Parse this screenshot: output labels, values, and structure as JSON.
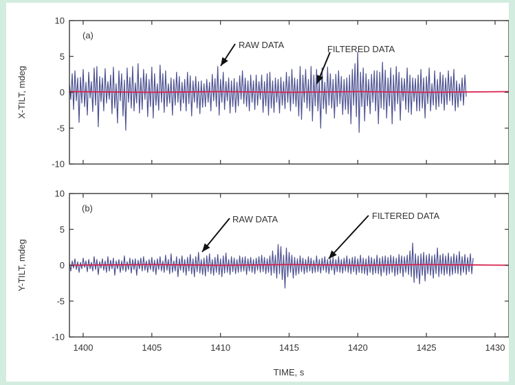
{
  "colors": {
    "page_background": "#d3ece0",
    "raw_data": "#4a4f8f",
    "filtered_data": "#d81e4a",
    "axis": "#333333"
  },
  "chart_data": [
    {
      "type": "line",
      "panel_label": "(a)",
      "xlabel": "",
      "ylabel": "X-TILT, mdeg",
      "xlim": [
        1399,
        1431
      ],
      "ylim": [
        -10,
        10
      ],
      "x_ticks": [
        1400,
        1405,
        1410,
        1415,
        1420,
        1425,
        1430
      ],
      "x_tick_labels": [
        "",
        "",
        "",
        "",
        "",
        "",
        ""
      ],
      "y_ticks": [
        10,
        5,
        0,
        -5,
        -10
      ],
      "y_tick_labels": [
        "10",
        "5",
        "0",
        "-5",
        "-10"
      ],
      "grid": false,
      "annotations": [
        {
          "text": "RAW DATA",
          "x": 1409.7,
          "y": 3.9
        },
        {
          "text": "FILTERED DATA",
          "x": 1416.4,
          "y": 0.6
        }
      ],
      "series": [
        {
          "name": "RAW DATA",
          "x_start": 1399,
          "x_step": 0.1,
          "values": [
            1.2,
            -1.0,
            2.6,
            -2.4,
            3.0,
            -1.2,
            2.0,
            -4.2,
            2.1,
            -1.5,
            3.2,
            -2.0,
            1.4,
            -3.2,
            2.8,
            -0.8,
            1.5,
            -2.7,
            3.4,
            -1.8,
            3.6,
            -4.8,
            2.2,
            -1.3,
            2.0,
            -2.6,
            3.3,
            -1.5,
            1.5,
            -1.0,
            2.4,
            -3.0,
            3.5,
            -2.2,
            1.2,
            -4.3,
            3.0,
            -1.2,
            2.6,
            -3.3,
            1.7,
            -5.3,
            3.4,
            -1.4,
            2.1,
            -2.2,
            3.6,
            -2.6,
            1.3,
            -1.5,
            4.0,
            -2.9,
            2.0,
            -2.4,
            3.2,
            -1.0,
            2.6,
            -3.4,
            1.8,
            -2.0,
            3.5,
            -3.6,
            2.6,
            -1.8,
            1.2,
            -2.5,
            3.8,
            -1.4,
            2.6,
            -2.8,
            3.0,
            -2.0,
            1.2,
            -1.5,
            2.0,
            -3.2,
            1.8,
            -1.8,
            2.8,
            -1.4,
            2.2,
            -2.6,
            1.4,
            -1.5,
            1.8,
            -2.6,
            2.8,
            -1.6,
            2.3,
            -3.3,
            1.6,
            -1.4,
            2.2,
            -2.2,
            1.5,
            -3.0,
            1.6,
            -2.1,
            1.2,
            -2.0,
            1.8,
            -1.4,
            1.4,
            -2.6,
            2.5,
            -1.2,
            1.9,
            -2.0,
            3.6,
            -3.2,
            1.8,
            -1.4,
            2.8,
            -2.4,
            1.5,
            -1.2,
            2.0,
            -2.9,
            1.6,
            -2.0,
            1.9,
            -2.8,
            1.4,
            -1.9,
            2.3,
            -1.0,
            3.0,
            -1.6,
            2.0,
            -2.0,
            1.6,
            -2.6,
            2.4,
            -1.4,
            1.6,
            -2.4,
            2.4,
            -1.8,
            1.5,
            -1.0,
            2.4,
            -2.8,
            1.5,
            -1.9,
            2.6,
            -3.2,
            2.8,
            -2.2,
            1.6,
            -2.8,
            2.0,
            -1.4,
            1.8,
            -2.9,
            2.1,
            -1.8,
            1.5,
            -2.3,
            2.8,
            -1.4,
            2.2,
            -2.6,
            3.2,
            -1.6,
            2.0,
            -2.0,
            1.8,
            -3.3,
            3.6,
            -3.8,
            2.4,
            -1.4,
            3.2,
            -2.2,
            1.8,
            -2.6,
            3.6,
            -4.0,
            2.4,
            -1.9,
            3.2,
            -2.6,
            1.8,
            -5.0,
            3.4,
            -2.3,
            1.4,
            -3.0,
            3.5,
            -1.8,
            2.6,
            -2.2,
            1.8,
            -3.6,
            2.5,
            -2.0,
            3.0,
            -1.6,
            2.2,
            -3.1,
            1.8,
            -2.4,
            2.0,
            -3.0,
            2.4,
            -4.4,
            3.2,
            -1.8,
            4.0,
            -3.4,
            5.6,
            -5.6,
            2.8,
            -2.0,
            3.4,
            -4.0,
            2.6,
            -1.9,
            1.8,
            -3.0,
            2.5,
            -1.4,
            3.0,
            -2.6,
            3.0,
            -4.4,
            2.8,
            -2.2,
            4.2,
            -2.4,
            3.1,
            -3.6,
            2.0,
            -1.9,
            3.4,
            -4.4,
            2.4,
            -2.6,
            3.6,
            -1.6,
            2.8,
            -3.9,
            2.0,
            -1.2,
            1.9,
            -2.4,
            3.4,
            -2.8,
            2.4,
            -3.1,
            2.0,
            -1.3,
            1.9,
            -2.6,
            2.4,
            -2.6,
            3.2,
            -2.2,
            2.0,
            -3.6,
            2.2,
            -1.6,
            3.4,
            -2.6,
            1.2,
            -1.8,
            3.0,
            -2.4,
            1.8,
            -2.0,
            2.8,
            -1.6,
            2.4,
            -2.5,
            2.0,
            -1.7,
            3.0,
            -1.2,
            2.2,
            -1.8,
            3.2,
            -2.6,
            1.6,
            -2.1,
            1.2,
            -1.2,
            2.0,
            -1.8,
            2.4,
            -0.6
          ]
        },
        {
          "name": "FILTERED DATA",
          "x": [
            1399,
            1405,
            1410,
            1415,
            1420,
            1425,
            1431
          ],
          "y": [
            0.1,
            0.0,
            0.1,
            0.0,
            0.1,
            0.0,
            0.1
          ]
        }
      ]
    },
    {
      "type": "line",
      "panel_label": "(b)",
      "xlabel": "TIME, s",
      "ylabel": "Y-TILT, mdeg",
      "xlim": [
        1399,
        1431
      ],
      "ylim": [
        -10,
        10
      ],
      "x_ticks": [
        1400,
        1405,
        1410,
        1415,
        1420,
        1425,
        1430
      ],
      "x_tick_labels": [
        "1400",
        "1405",
        "1410",
        "1415",
        "1420",
        "1425",
        "1430"
      ],
      "y_ticks": [
        10,
        5,
        0,
        -5,
        -10
      ],
      "y_tick_labels": [
        "10",
        "5",
        "0",
        "-5",
        "-10"
      ],
      "grid": false,
      "annotations": [
        {
          "text": "RAW DATA",
          "x": 1408.8,
          "y": 1.3
        },
        {
          "text": "FILTERED DATA",
          "x": 1417.2,
          "y": 0.5
        }
      ],
      "series": [
        {
          "name": "RAW DATA",
          "x_start": 1399,
          "x_step": 0.1,
          "values": [
            0.4,
            -0.8,
            0.6,
            -0.4,
            0.9,
            -0.6,
            0.5,
            -1.0,
            0.4,
            -0.5,
            1.0,
            -0.3,
            0.6,
            -0.9,
            0.8,
            -0.5,
            0.4,
            -0.8,
            1.2,
            -0.6,
            0.8,
            -1.3,
            0.5,
            -0.4,
            0.9,
            -0.7,
            0.6,
            -1.0,
            1.2,
            -0.8,
            0.7,
            -0.5,
            1.0,
            -1.4,
            0.6,
            -0.5,
            0.8,
            -1.0,
            0.6,
            -0.7,
            1.3,
            -0.9,
            0.5,
            -0.6,
            1.0,
            -1.1,
            0.8,
            -0.6,
            0.9,
            -1.4,
            0.7,
            -0.5,
            1.0,
            -0.8,
            1.2,
            -0.7,
            0.6,
            -1.0,
            0.8,
            -0.6,
            1.1,
            -0.9,
            0.7,
            -1.3,
            0.9,
            -0.6,
            1.2,
            -0.8,
            0.6,
            -1.0,
            1.4,
            -0.7,
            0.8,
            -1.2,
            1.6,
            -1.0,
            0.6,
            -0.8,
            1.2,
            -1.6,
            0.9,
            -0.7,
            1.3,
            -1.0,
            0.8,
            -1.4,
            1.1,
            -0.8,
            1.5,
            -1.2,
            0.9,
            -1.6,
            1.2,
            -0.9,
            1.8,
            -1.1,
            0.8,
            -1.3,
            1.0,
            -1.5,
            1.3,
            -0.9,
            1.6,
            -1.2,
            0.8,
            -1.4,
            1.1,
            -1.0,
            1.5,
            -1.3,
            0.9,
            -1.6,
            1.3,
            -1.1,
            1.7,
            -1.0,
            0.8,
            -1.3,
            1.2,
            -0.9,
            1.0,
            -1.2,
            0.8,
            -1.0,
            1.3,
            -0.9,
            1.1,
            -0.8,
            1.2,
            -1.3,
            0.9,
            -0.8,
            1.1,
            -1.0,
            0.8,
            -1.2,
            1.0,
            -0.7,
            1.2,
            -1.0,
            1.4,
            -0.9,
            1.1,
            -1.2,
            0.9,
            -1.0,
            1.3,
            -1.4,
            2.0,
            -1.1,
            1.4,
            -1.8,
            2.9,
            -1.2,
            2.6,
            -2.0,
            1.4,
            -3.2,
            2.4,
            -1.6,
            1.8,
            -1.0,
            1.4,
            -1.8,
            1.1,
            -1.4,
            0.9,
            -1.2,
            1.3,
            -0.9,
            1.0,
            -1.2,
            0.8,
            -1.0,
            1.2,
            -0.8,
            1.0,
            -1.1,
            0.7,
            -1.0,
            1.3,
            -0.9,
            0.8,
            -1.1,
            1.0,
            -0.7,
            1.2,
            -1.0,
            0.8,
            -1.2,
            0.9,
            -0.7,
            1.1,
            -1.3,
            0.8,
            -0.9,
            1.2,
            -1.0,
            0.8,
            -1.1,
            1.0,
            -0.8,
            1.3,
            -1.0,
            0.9,
            -1.2,
            1.1,
            -0.9,
            1.2,
            -1.3,
            0.9,
            -1.0,
            1.4,
            -1.1,
            1.0,
            -1.2,
            0.9,
            -1.4,
            1.3,
            -1.0,
            1.1,
            -1.3,
            0.9,
            -1.1,
            1.4,
            -1.2,
            1.0,
            -1.5,
            1.2,
            -1.0,
            1.3,
            -1.4,
            1.1,
            -1.2,
            1.4,
            -1.0,
            1.2,
            -1.5,
            1.0,
            -1.3,
            1.5,
            -1.1,
            1.3,
            -1.6,
            1.2,
            -1.0,
            1.4,
            -1.3,
            2.0,
            -1.6,
            3.1,
            -2.4,
            1.6,
            -1.8,
            1.3,
            -2.6,
            1.6,
            -1.4,
            1.8,
            -2.2,
            1.4,
            -1.2,
            1.6,
            -1.4,
            1.3,
            -1.8,
            1.5,
            -1.2,
            2.4,
            -1.6,
            1.4,
            -1.2,
            1.6,
            -1.4,
            1.3,
            -1.2,
            1.7,
            -1.5,
            1.2,
            -1.3,
            1.6,
            -1.1,
            1.4,
            -1.2,
            1.9,
            -1.4,
            1.2,
            -1.0,
            1.5,
            -1.3,
            1.1,
            -0.9,
            1.6,
            -1.2,
            1.0
          ]
        },
        {
          "name": "FILTERED DATA",
          "x": [
            1399,
            1405,
            1410,
            1415,
            1420,
            1425,
            1431
          ],
          "y": [
            0.0,
            0.1,
            0.0,
            0.1,
            0.0,
            0.1,
            0.0
          ]
        }
      ]
    }
  ]
}
